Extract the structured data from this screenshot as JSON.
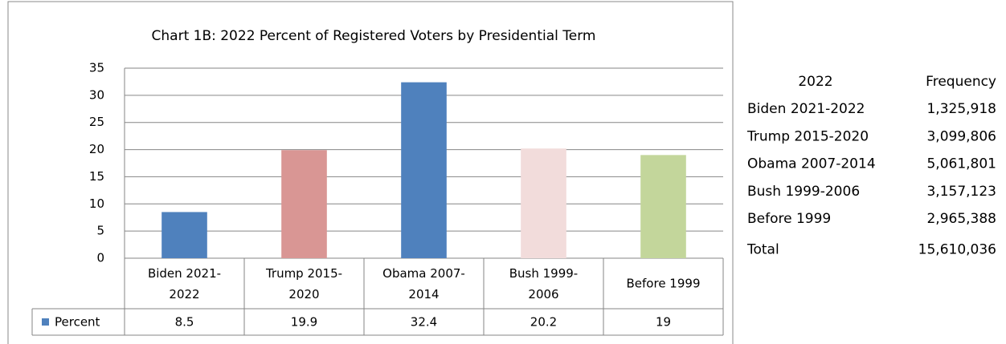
{
  "chart_data": {
    "type": "bar",
    "title": "Chart 1B: 2022  Percent of Registered Voters by Presidential Term",
    "categories": [
      "Biden 2021-2022",
      "Trump 2015-2020",
      "Obama 2007-2014",
      "Bush 1999-2006",
      "Before 1999"
    ],
    "series": [
      {
        "name": "Percent",
        "color": "#4f81bd",
        "point_colors": [
          "#4f81bd",
          "#d99694",
          "#4f81bd",
          "#f2dcdb",
          "#c3d69b"
        ],
        "values": [
          8.5,
          19.9,
          32.4,
          20.2,
          19
        ]
      }
    ],
    "ylim": [
      0,
      35
    ],
    "yticks": [
      0,
      5,
      10,
      15,
      20,
      25,
      30,
      35
    ],
    "grid": true
  },
  "table": {
    "header": [
      "2022",
      "Frequency"
    ],
    "rows": [
      [
        "Biden 2021-2022",
        "1,325,918"
      ],
      [
        "Trump 2015-2020",
        "3,099,806"
      ],
      [
        "Obama 2007-2014",
        "5,061,801"
      ],
      [
        "Bush 1999-2006",
        "3,157,123"
      ],
      [
        "Before 1999",
        "2,965,388"
      ],
      [
        "Total",
        "15,610,036"
      ]
    ]
  }
}
